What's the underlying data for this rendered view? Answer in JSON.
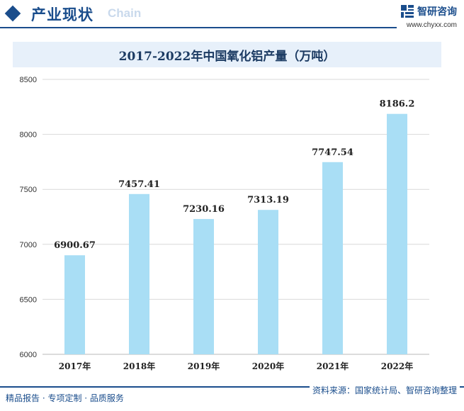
{
  "header": {
    "section_title": "产业现状",
    "section_subtitle": "Chain",
    "brand_name": "智研咨询",
    "brand_url": "www.chyxx.com"
  },
  "chart_data": {
    "type": "bar",
    "title": "2017-2022年中国氧化铝产量（万吨）",
    "categories": [
      "2017年",
      "2018年",
      "2019年",
      "2020年",
      "2021年",
      "2022年"
    ],
    "values": [
      6900.67,
      7457.41,
      7230.16,
      7313.19,
      7747.54,
      8186.2
    ],
    "value_labels": [
      "6900.67",
      "7457.41",
      "7230.16",
      "7313.19",
      "7747.54",
      "8186.2"
    ],
    "ylim": [
      6000,
      8500
    ],
    "yticks": [
      6000,
      6500,
      7000,
      7500,
      8000,
      8500
    ],
    "grid": true,
    "bar_color": "#a9def5"
  },
  "footer": {
    "left_text": "精品报告 · 专项定制 · 品质服务",
    "source_text": "资料来源：国家统计局、智研咨询整理"
  }
}
